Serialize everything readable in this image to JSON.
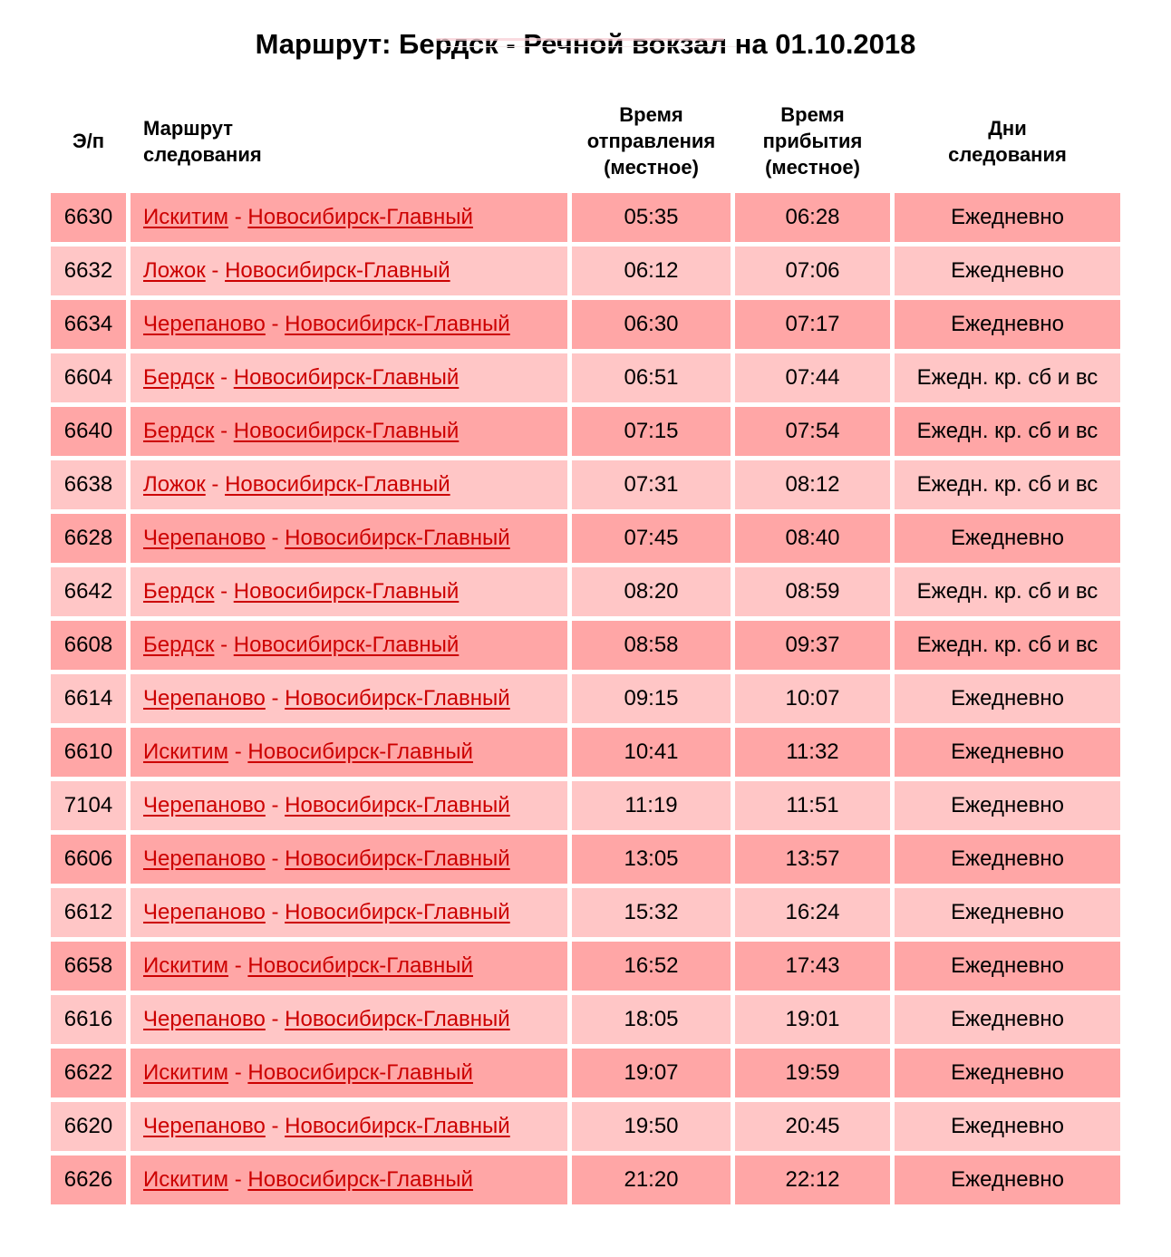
{
  "page": {
    "title": "Маршрут: Бердск - Речной вокзал на 01.10.2018"
  },
  "colors": {
    "row_dark": "#ffa6a6",
    "row_light": "#ffc6c6",
    "link_red": "#cc0000",
    "text": "#000000",
    "cell_gap": "#ffffff",
    "top_line": "#f8cfd6"
  },
  "table": {
    "headers": {
      "train": "Э/п",
      "route": "Маршрут\nследования",
      "departure": "Время\nотправления\n(местное)",
      "arrival": "Время\nприбытия\n(местное)",
      "days": "Дни\nследования"
    },
    "route_separator": " - ",
    "rows": [
      {
        "train": "6630",
        "from": "Искитим",
        "to": "Новосибирск-Главный",
        "departure": "05:35",
        "arrival": "06:28",
        "days": "Ежедневно"
      },
      {
        "train": "6632",
        "from": "Ложок",
        "to": "Новосибирск-Главный",
        "departure": "06:12",
        "arrival": "07:06",
        "days": "Ежедневно"
      },
      {
        "train": "6634",
        "from": "Черепаново",
        "to": "Новосибирск-Главный",
        "departure": "06:30",
        "arrival": "07:17",
        "days": "Ежедневно"
      },
      {
        "train": "6604",
        "from": "Бердск",
        "to": "Новосибирск-Главный",
        "departure": "06:51",
        "arrival": "07:44",
        "days": "Ежедн. кр. сб и вс"
      },
      {
        "train": "6640",
        "from": "Бердск",
        "to": "Новосибирск-Главный",
        "departure": "07:15",
        "arrival": "07:54",
        "days": "Ежедн. кр. сб и вс"
      },
      {
        "train": "6638",
        "from": "Ложок",
        "to": "Новосибирск-Главный",
        "departure": "07:31",
        "arrival": "08:12",
        "days": "Ежедн. кр. сб и вс"
      },
      {
        "train": "6628",
        "from": "Черепаново",
        "to": "Новосибирск-Главный",
        "departure": "07:45",
        "arrival": "08:40",
        "days": "Ежедневно"
      },
      {
        "train": "6642",
        "from": "Бердск",
        "to": "Новосибирск-Главный",
        "departure": "08:20",
        "arrival": "08:59",
        "days": "Ежедн. кр. сб и вс"
      },
      {
        "train": "6608",
        "from": "Бердск",
        "to": "Новосибирск-Главный",
        "departure": "08:58",
        "arrival": "09:37",
        "days": "Ежедн. кр. сб и вс"
      },
      {
        "train": "6614",
        "from": "Черепаново",
        "to": "Новосибирск-Главный",
        "departure": "09:15",
        "arrival": "10:07",
        "days": "Ежедневно"
      },
      {
        "train": "6610",
        "from": "Искитим",
        "to": "Новосибирск-Главный",
        "departure": "10:41",
        "arrival": "11:32",
        "days": "Ежедневно"
      },
      {
        "train": "7104",
        "from": "Черепаново",
        "to": "Новосибирск-Главный",
        "departure": "11:19",
        "arrival": "11:51",
        "days": "Ежедневно"
      },
      {
        "train": "6606",
        "from": "Черепаново",
        "to": "Новосибирск-Главный",
        "departure": "13:05",
        "arrival": "13:57",
        "days": "Ежедневно"
      },
      {
        "train": "6612",
        "from": "Черепаново",
        "to": "Новосибирск-Главный",
        "departure": "15:32",
        "arrival": "16:24",
        "days": "Ежедневно"
      },
      {
        "train": "6658",
        "from": "Искитим",
        "to": "Новосибирск-Главный",
        "departure": "16:52",
        "arrival": "17:43",
        "days": "Ежедневно"
      },
      {
        "train": "6616",
        "from": "Черепаново",
        "to": "Новосибирск-Главный",
        "departure": "18:05",
        "arrival": "19:01",
        "days": "Ежедневно"
      },
      {
        "train": "6622",
        "from": "Искитим",
        "to": "Новосибирск-Главный",
        "departure": "19:07",
        "arrival": "19:59",
        "days": "Ежедневно"
      },
      {
        "train": "6620",
        "from": "Черепаново",
        "to": "Новосибирск-Главный",
        "departure": "19:50",
        "arrival": "20:45",
        "days": "Ежедневно"
      },
      {
        "train": "6626",
        "from": "Искитим",
        "to": "Новосибирск-Главный",
        "departure": "21:20",
        "arrival": "22:12",
        "days": "Ежедневно"
      }
    ]
  }
}
